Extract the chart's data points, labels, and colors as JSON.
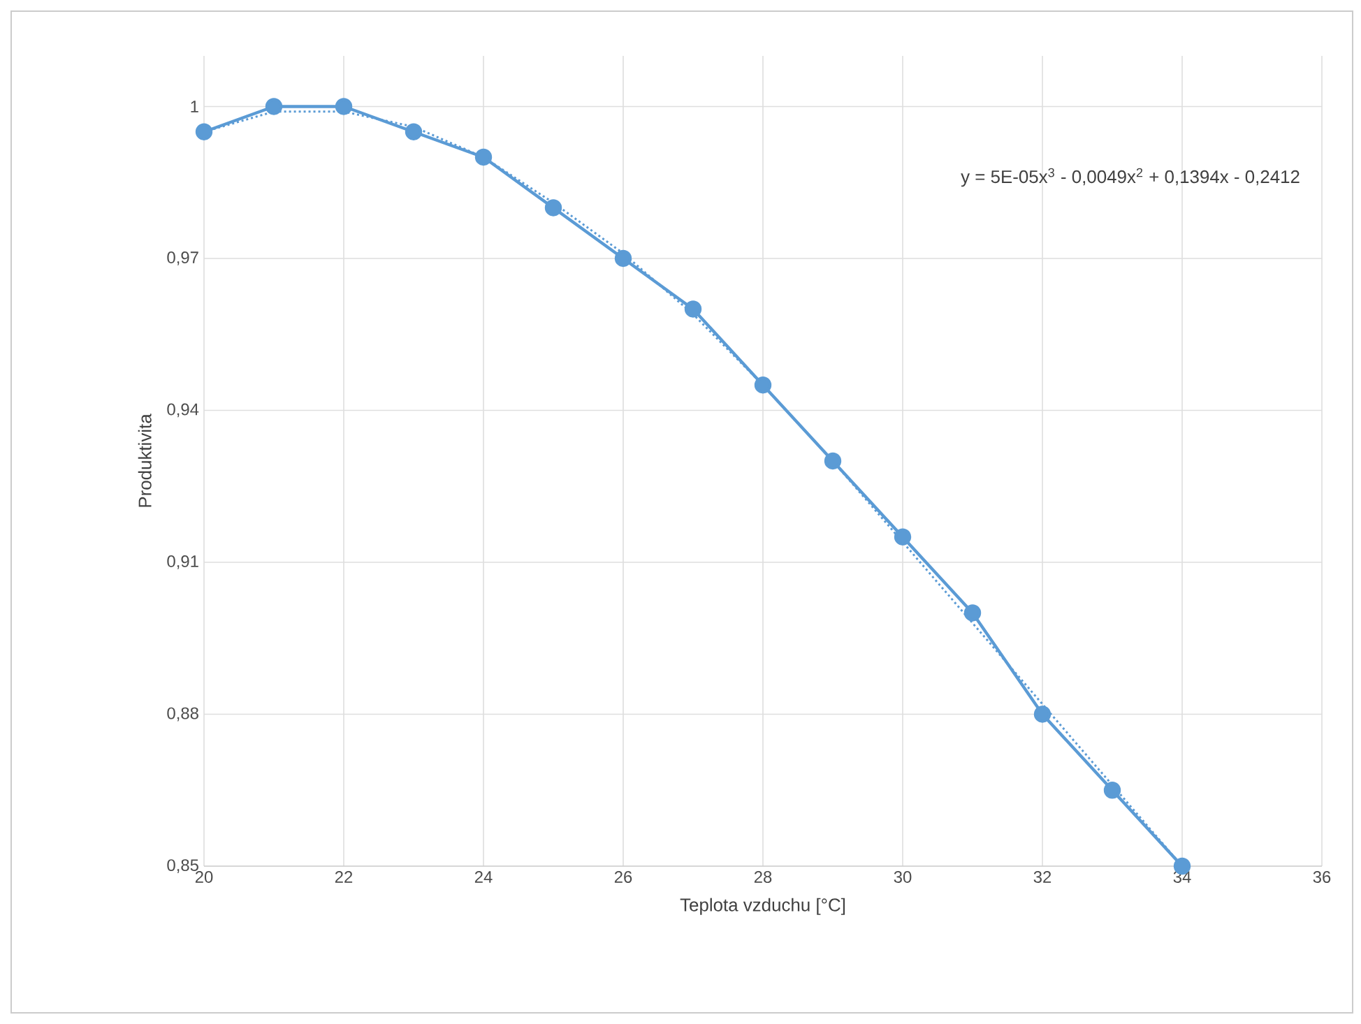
{
  "chart_data": {
    "type": "line",
    "xlabel": "Teplota vzduchu [°C]",
    "ylabel": "Produktivita",
    "x": [
      20,
      21,
      22,
      23,
      24,
      25,
      26,
      27,
      28,
      29,
      30,
      31,
      32,
      33,
      34
    ],
    "series": [
      {
        "color": "#5b9bd5",
        "marker": "circle",
        "line_style": "solid",
        "values": [
          0.995,
          1.0,
          1.0,
          0.995,
          0.99,
          0.98,
          0.97,
          0.96,
          0.945,
          0.93,
          0.915,
          0.9,
          0.88,
          0.865,
          0.85
        ]
      },
      {
        "color": "#5b9bd5",
        "marker": "none",
        "line_style": "dotted",
        "x": [
          20,
          21,
          22,
          23,
          24,
          25,
          26,
          27,
          28,
          29,
          30,
          31,
          32,
          33,
          34
        ],
        "values": [
          0.995,
          0.999,
          0.999,
          0.996,
          0.99,
          0.981,
          0.971,
          0.959,
          0.945,
          0.93,
          0.914,
          0.898,
          0.882,
          0.866,
          0.85
        ]
      }
    ],
    "xlim": [
      20,
      36
    ],
    "xticks": [
      20,
      22,
      24,
      26,
      28,
      30,
      32,
      34,
      36
    ],
    "ylim": [
      0.85,
      1.01
    ],
    "yticks": [
      {
        "value": 0.85,
        "label": "0,85"
      },
      {
        "value": 0.88,
        "label": "0,88"
      },
      {
        "value": 0.91,
        "label": "0,91"
      },
      {
        "value": 0.94,
        "label": "0,94"
      },
      {
        "value": 0.97,
        "label": "0,97"
      },
      {
        "value": 1,
        "label": "1"
      }
    ],
    "grid": true,
    "annotations": [
      "y = 5E-05x$^{3}$ - 0,0049x$^{2}$ + 0,1394x - 0,2412"
    ]
  }
}
